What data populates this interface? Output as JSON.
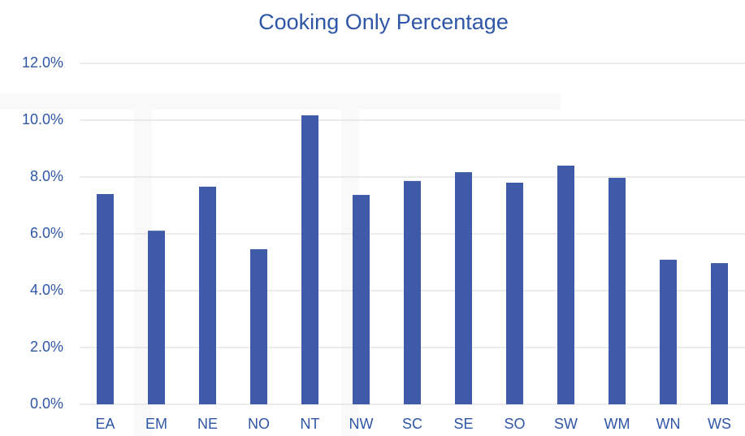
{
  "chart_data": {
    "type": "bar",
    "title": "Cooking Only Percentage",
    "categories": [
      "EA",
      "EM",
      "NE",
      "NO",
      "NT",
      "NW",
      "SC",
      "SE",
      "SO",
      "SW",
      "WM",
      "WN",
      "WS"
    ],
    "values": [
      7.4,
      6.11,
      7.66,
      5.46,
      10.17,
      7.37,
      7.86,
      8.17,
      7.8,
      8.4,
      7.97,
      5.09,
      4.97
    ],
    "color": "#3f5aa8",
    "ylim": [
      0,
      12
    ],
    "yticks": [
      {
        "value": 0,
        "label": "0.0%"
      },
      {
        "value": 2,
        "label": "2.0%"
      },
      {
        "value": 4,
        "label": "4.0%"
      },
      {
        "value": 6,
        "label": "6.0%"
      },
      {
        "value": 8,
        "label": "8.0%"
      },
      {
        "value": 10,
        "label": "10.0%"
      },
      {
        "value": 12,
        "label": "12.0%"
      }
    ],
    "grid": true
  }
}
